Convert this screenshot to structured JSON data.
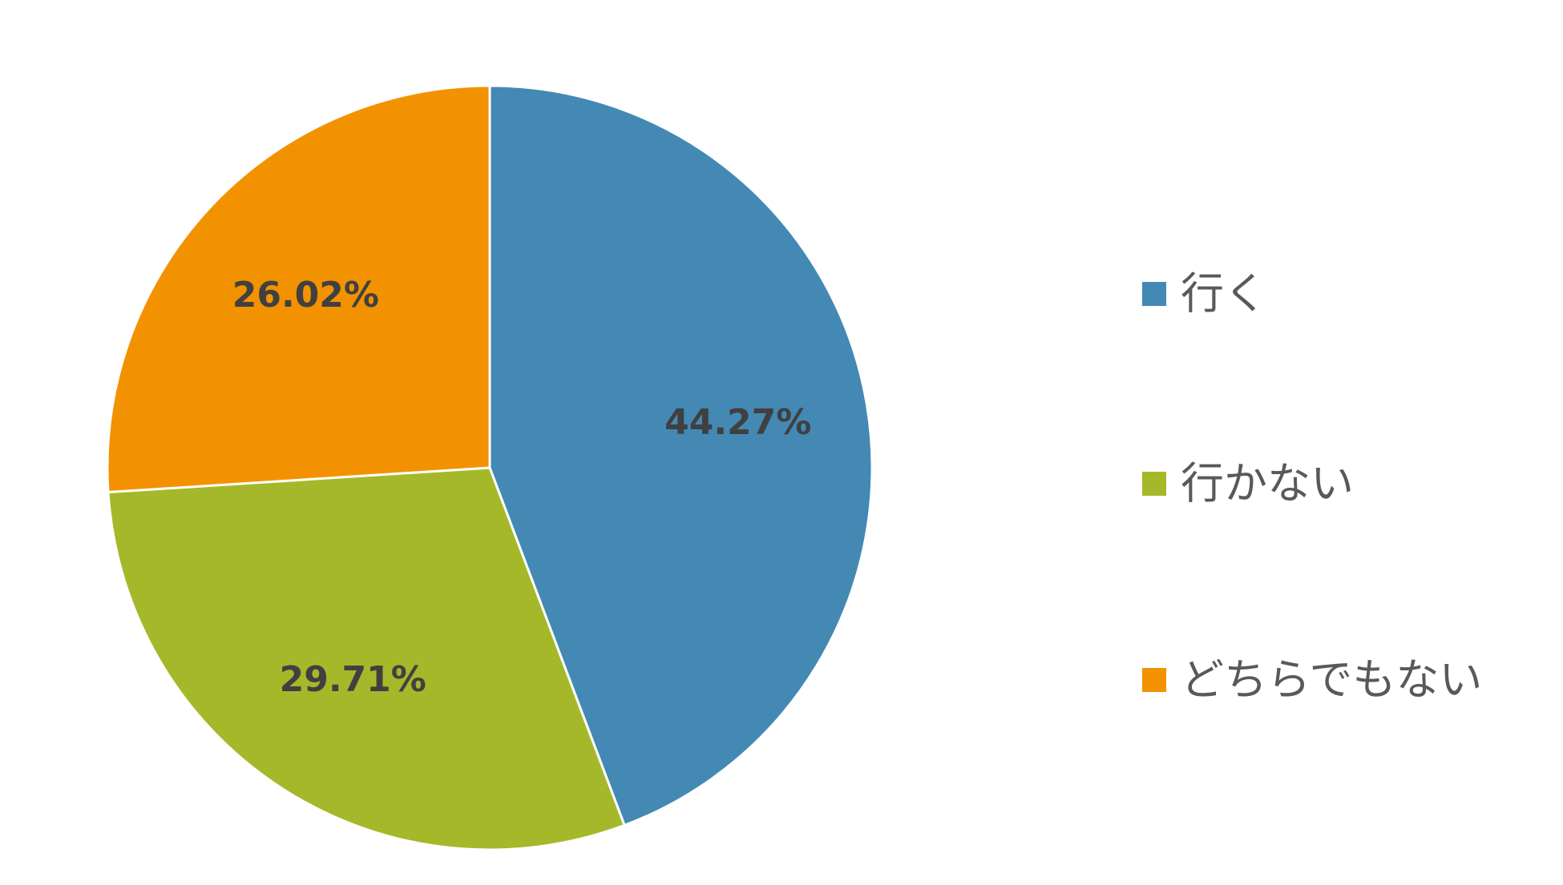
{
  "chart_data": {
    "type": "pie",
    "title": "",
    "start_angle_deg": 0,
    "direction": "clockwise",
    "slices": [
      {
        "label": "行く",
        "value": 44.27,
        "display": "44.27%",
        "color": "#4389B4"
      },
      {
        "label": "行かない",
        "value": 29.71,
        "display": "29.71%",
        "color": "#A5B82A"
      },
      {
        "label": "どちらでもない",
        "value": 26.02,
        "display": "26.02%",
        "color": "#F39200"
      }
    ],
    "legend": {
      "position": "right"
    }
  }
}
